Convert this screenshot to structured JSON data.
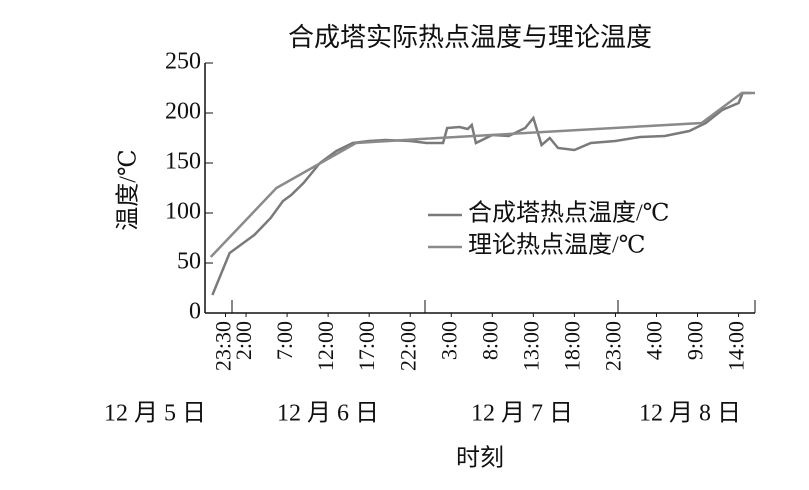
{
  "chart_data": {
    "type": "line",
    "title": "合成塔实际热点温度与理论温度",
    "ylabel": "温度/℃",
    "xlabel": "时刻",
    "day_labels": [
      "12 月 5 日",
      "12 月 6 日",
      "12 月 7 日",
      "12 月 8 日"
    ],
    "xlim": [
      21,
      88
    ],
    "xticks": [
      {
        "value": 23.5,
        "label": "23:30"
      },
      {
        "value": 26,
        "label": "2:00"
      },
      {
        "value": 31,
        "label": "7:00"
      },
      {
        "value": 36,
        "label": "12:00"
      },
      {
        "value": 41,
        "label": "17:00"
      },
      {
        "value": 46,
        "label": "22:00"
      },
      {
        "value": 51,
        "label": "3:00"
      },
      {
        "value": 56,
        "label": "8:00"
      },
      {
        "value": 61,
        "label": "13:00"
      },
      {
        "value": 66,
        "label": "18:00"
      },
      {
        "value": 71,
        "label": "23:00"
      },
      {
        "value": 76,
        "label": "4:00"
      },
      {
        "value": 81,
        "label": "9:00"
      },
      {
        "value": 86,
        "label": "14:00"
      }
    ],
    "ylim": [
      0,
      250
    ],
    "yticks": [
      0,
      50,
      100,
      150,
      200,
      250
    ],
    "series": [
      {
        "name": "合成塔热点温度/℃",
        "color": "#7a7a7a",
        "x": [
          21.9,
          24,
          27,
          29,
          30.5,
          31.5,
          33,
          35,
          37,
          39,
          41,
          43,
          46,
          48,
          50,
          50.5,
          52,
          53,
          53.5,
          54,
          56,
          58,
          60,
          61,
          62,
          63,
          64,
          66,
          68,
          71,
          74,
          77,
          80,
          82,
          84,
          86,
          86.5,
          87.5
        ],
        "values": [
          18,
          60,
          78,
          95,
          112,
          118,
          130,
          150,
          162,
          170,
          172,
          173,
          172,
          170,
          170,
          185,
          186,
          184,
          188,
          170,
          178,
          177,
          185,
          195,
          168,
          175,
          165,
          163,
          170,
          172,
          176,
          177,
          182,
          190,
          203,
          210,
          220,
          220
        ]
      },
      {
        "name": "理论热点温度/℃",
        "color": "#8a8a8a",
        "x": [
          21.7,
          29.7,
          39.4,
          47.3,
          81.5,
          86.4,
          88
        ],
        "values": [
          56,
          125,
          170,
          174,
          190,
          220,
          220
        ]
      }
    ]
  }
}
